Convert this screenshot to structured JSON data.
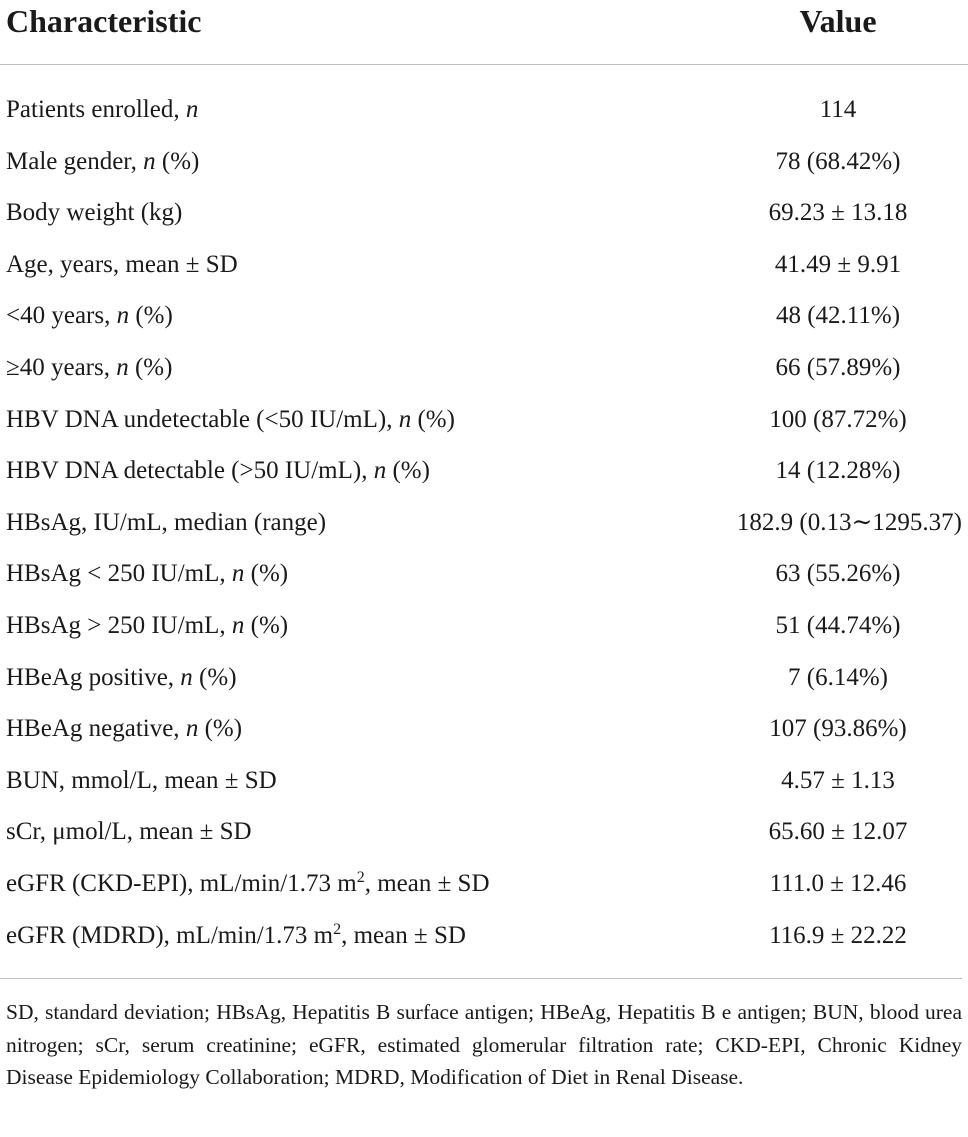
{
  "header": {
    "characteristic": "Characteristic",
    "value": "Value"
  },
  "rows": [
    {
      "pre": "Patients enrolled, ",
      "it": "n",
      "post": "",
      "value": "114"
    },
    {
      "pre": "Male gender, ",
      "it": "n",
      "post": " (%)",
      "value": "78 (68.42%)"
    },
    {
      "pre": "Body weight (kg)",
      "it": "",
      "post": "",
      "value": "69.23 ± 13.18"
    },
    {
      "pre": "Age, years, mean ± SD",
      "it": "",
      "post": "",
      "value": "41.49 ± 9.91"
    },
    {
      "pre": "<40 years, ",
      "it": "n",
      "post": " (%)",
      "value": "48 (42.11%)"
    },
    {
      "pre": "≥40 years, ",
      "it": "n",
      "post": " (%)",
      "value": "66 (57.89%)"
    },
    {
      "pre": "HBV DNA undetectable (<50 IU/mL), ",
      "it": "n",
      "post": " (%)",
      "value": "100 (87.72%)"
    },
    {
      "pre": "HBV DNA detectable (>50 IU/mL), ",
      "it": "n",
      "post": " (%)",
      "value": "14 (12.28%)"
    },
    {
      "pre": "HBsAg, IU/mL, median (range)",
      "it": "",
      "post": "",
      "value": "182.9 (0.13∼1295.37)"
    },
    {
      "pre": "HBsAg < 250 IU/mL, ",
      "it": "n",
      "post": " (%)",
      "value": "63 (55.26%)"
    },
    {
      "pre": "HBsAg > 250 IU/mL, ",
      "it": "n",
      "post": " (%)",
      "value": "51 (44.74%)"
    },
    {
      "pre": "HBeAg positive, ",
      "it": "n",
      "post": " (%)",
      "value": "7 (6.14%)"
    },
    {
      "pre": "HBeAg negative, ",
      "it": "n",
      "post": " (%)",
      "value": "107 (93.86%)"
    },
    {
      "pre": "BUN, mmol/L, mean ± SD",
      "it": "",
      "post": "",
      "value": "4.57 ± 1.13"
    },
    {
      "pre": "sCr, μmol/L, mean ± SD",
      "it": "",
      "post": "",
      "value": "65.60 ± 12.07"
    },
    {
      "pre": "eGFR (CKD-EPI), mL/min/1.73 m",
      "sup": "2",
      "post": ", mean ± SD",
      "value": "111.0 ± 12.46"
    },
    {
      "pre": "eGFR (MDRD), mL/min/1.73 m",
      "sup": "2",
      "post": ", mean ± SD",
      "value": "116.9 ± 22.22"
    }
  ],
  "footnote": "SD, standard deviation; HBsAg, Hepatitis B surface antigen; HBeAg, Hepatitis B e antigen; BUN, blood urea nitrogen; sCr, serum creatinine; eGFR, estimated glomerular filtration rate; CKD-EPI, Chronic Kidney Disease Epidemiology Collaboration; MDRD, Modification of Diet in Renal Disease."
}
